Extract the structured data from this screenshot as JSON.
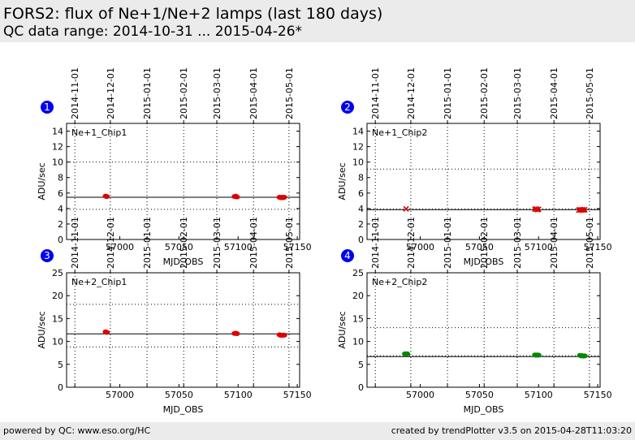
{
  "header": {
    "title": "FORS2: flux of Ne+1/Ne+2 lamps (last 180 days)",
    "subtitle": "QC data range: 2014-10-31 ... 2015-04-26*"
  },
  "footer": {
    "left": "powered by QC: www.eso.org/HC",
    "right": "created by trendPlotter v3.5 on 2015-04-28T11:03:20"
  },
  "colors": {
    "chip1": "#dd0000",
    "chip2_upper": "#dd0000",
    "chip2_lower": "#008800",
    "badge": "#0000ee",
    "header_bg": "#ebebeb"
  },
  "chart_data": [
    {
      "type": "scatter",
      "badge": "1",
      "title": "Ne+1_Chip1",
      "xlabel": "MJD_OBS",
      "ylabel": "ADU/sec",
      "xlim": [
        56955,
        57152
      ],
      "ylim": [
        0,
        15
      ],
      "xticks": [
        57000,
        57050,
        57100,
        57150
      ],
      "yticks": [
        0,
        2,
        4,
        6,
        8,
        10,
        12,
        14
      ],
      "date_ticks": [
        [
          "2014-11-01",
          56962
        ],
        [
          "2014-12-01",
          56992
        ],
        [
          "2015-01-01",
          57023
        ],
        [
          "2015-02-01",
          57054
        ],
        [
          "2015-03-01",
          57082
        ],
        [
          "2015-04-01",
          57113
        ],
        [
          "2015-05-01",
          57143
        ]
      ],
      "mean": 5.45,
      "limits": [
        3.9,
        10.0
      ],
      "color": "#dd0000",
      "marker": "circle",
      "points": [
        [
          56988,
          5.6
        ],
        [
          56989,
          5.55
        ],
        [
          57097,
          5.55
        ],
        [
          57098,
          5.6
        ],
        [
          57099,
          5.5
        ],
        [
          57135,
          5.45
        ],
        [
          57136,
          5.4
        ],
        [
          57137,
          5.45
        ],
        [
          57138,
          5.4
        ],
        [
          57139,
          5.45
        ]
      ]
    },
    {
      "type": "scatter",
      "badge": "2",
      "title": "Ne+1_Chip2",
      "xlabel": "MJD_OBS",
      "ylabel": "ADU/sec",
      "xlim": [
        56955,
        57152
      ],
      "ylim": [
        0,
        15
      ],
      "xticks": [
        57000,
        57050,
        57100,
        57150
      ],
      "yticks": [
        0,
        2,
        4,
        6,
        8,
        10,
        12,
        14
      ],
      "date_ticks": [
        [
          "2014-11-01",
          56962
        ],
        [
          "2014-12-01",
          56992
        ],
        [
          "2015-01-01",
          57023
        ],
        [
          "2015-02-01",
          57054
        ],
        [
          "2015-03-01",
          57082
        ],
        [
          "2015-04-01",
          57113
        ],
        [
          "2015-05-01",
          57143
        ]
      ],
      "mean": 3.85,
      "limits": [
        3.95,
        9.1
      ],
      "color": "#dd0000",
      "marker": "x",
      "points": [
        [
          56988,
          3.95
        ],
        [
          57097,
          3.9
        ],
        [
          57098,
          3.95
        ],
        [
          57099,
          3.85
        ],
        [
          57100,
          3.9
        ],
        [
          57134,
          3.8
        ],
        [
          57135,
          3.85
        ],
        [
          57136,
          3.8
        ],
        [
          57137,
          3.85
        ],
        [
          57138,
          3.8
        ],
        [
          57139,
          3.85
        ]
      ]
    },
    {
      "type": "scatter",
      "badge": "3",
      "title": "Ne+2_Chip1",
      "xlabel": "MJD_OBS",
      "ylabel": "ADU/sec",
      "xlim": [
        56955,
        57152
      ],
      "ylim": [
        0,
        25
      ],
      "xticks": [
        57000,
        57050,
        57100,
        57150
      ],
      "yticks": [
        0,
        5,
        10,
        15,
        20,
        25
      ],
      "date_ticks": [
        [
          "2014-11-01",
          56962
        ],
        [
          "2014-12-01",
          56992
        ],
        [
          "2015-01-01",
          57023
        ],
        [
          "2015-02-01",
          57054
        ],
        [
          "2015-03-01",
          57082
        ],
        [
          "2015-04-01",
          57113
        ],
        [
          "2015-05-01",
          57143
        ]
      ],
      "mean": 11.65,
      "limits": [
        8.8,
        18.1
      ],
      "color": "#dd0000",
      "marker": "circle",
      "points": [
        [
          56988,
          12.1
        ],
        [
          56989,
          12.0
        ],
        [
          57097,
          11.75
        ],
        [
          57098,
          11.8
        ],
        [
          57099,
          11.7
        ],
        [
          57135,
          11.45
        ],
        [
          57136,
          11.35
        ],
        [
          57137,
          11.4
        ],
        [
          57138,
          11.35
        ],
        [
          57139,
          11.4
        ]
      ]
    },
    {
      "type": "scatter",
      "badge": "4",
      "title": "Ne+2_Chip2",
      "xlabel": "MJD_OBS",
      "ylabel": "ADU/sec",
      "xlim": [
        56955,
        57152
      ],
      "ylim": [
        0,
        25
      ],
      "xticks": [
        57000,
        57050,
        57100,
        57150
      ],
      "yticks": [
        0,
        5,
        10,
        15,
        20,
        25
      ],
      "date_ticks": [
        [
          "2014-11-01",
          56962
        ],
        [
          "2014-12-01",
          56992
        ],
        [
          "2015-01-01",
          57023
        ],
        [
          "2015-02-01",
          57054
        ],
        [
          "2015-03-01",
          57082
        ],
        [
          "2015-04-01",
          57113
        ],
        [
          "2015-05-01",
          57143
        ]
      ],
      "mean": 6.7,
      "limits": [
        6.9,
        13.0
      ],
      "color": "#008800",
      "marker": "circle",
      "points": [
        [
          56987,
          7.3
        ],
        [
          56988,
          7.25
        ],
        [
          56989,
          7.3
        ],
        [
          57097,
          7.05
        ],
        [
          57098,
          7.0
        ],
        [
          57099,
          7.05
        ],
        [
          57100,
          7.0
        ],
        [
          57135,
          6.95
        ],
        [
          57136,
          6.85
        ],
        [
          57137,
          6.9
        ],
        [
          57138,
          6.8
        ],
        [
          57139,
          6.85
        ]
      ]
    }
  ]
}
